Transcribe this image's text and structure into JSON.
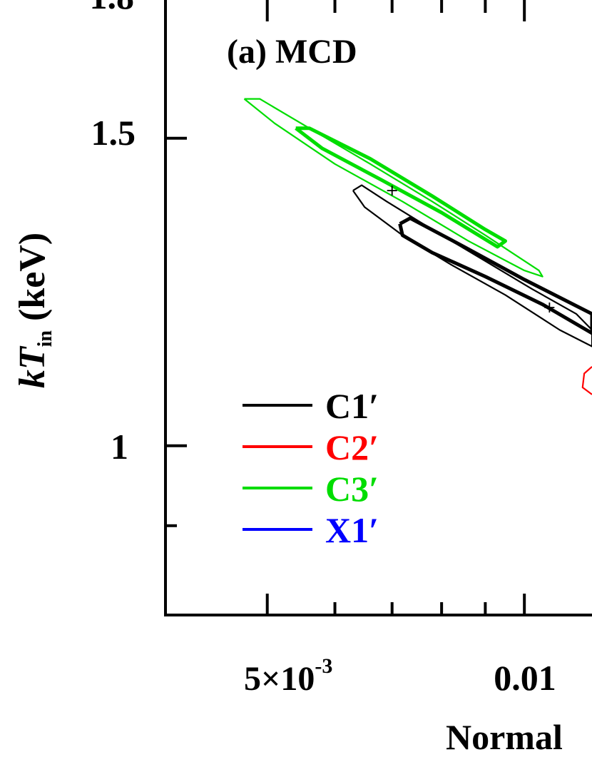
{
  "chart_data": {
    "type": "scatter",
    "panel_label": "(a) MCD",
    "ylabel_main": "kT",
    "ylabel_sub": "in",
    "ylabel_unit": "(keV)",
    "xlabel": "Normal",
    "x_scale": "log",
    "y_scale": "log",
    "xlim": [
      0.0038,
      0.012
    ],
    "ylim": [
      0.8,
      1.8
    ],
    "x_ticks_labeled": [
      {
        "value": 0.005,
        "mantissa": "5×10",
        "exponent": "-3"
      },
      {
        "value": 0.01,
        "label": "0.01"
      }
    ],
    "x_minor_ticks": [
      0.005,
      0.006,
      0.007,
      0.008,
      0.009,
      0.01
    ],
    "y_ticks_labeled": [
      {
        "value": 1.5,
        "label": "1.5"
      },
      {
        "value": 1.0,
        "label": "1"
      }
    ],
    "y_top_partial_label": "1.8",
    "y_minor_ticks": [
      0.9
    ],
    "legend_position": "lower-left",
    "series": [
      {
        "name": "C1′",
        "color": "#000000",
        "best_fit": {
          "x": 0.0107,
          "y": 1.2
        },
        "contours": [
          {
            "level": "outer",
            "points": [
              [
                0.0063,
                1.4
              ],
              [
                0.00645,
                1.41
              ],
              [
                0.0069,
                1.38
              ],
              [
                0.0078,
                1.33
              ],
              [
                0.0089,
                1.28
              ],
              [
                0.0102,
                1.23
              ],
              [
                0.0115,
                1.19
              ],
              [
                0.012,
                1.165
              ],
              [
                0.012,
                1.14
              ],
              [
                0.011,
                1.165
              ],
              [
                0.0095,
                1.22
              ],
              [
                0.0082,
                1.27
              ],
              [
                0.0072,
                1.32
              ],
              [
                0.0065,
                1.37
              ],
              [
                0.0063,
                1.4
              ]
            ]
          },
          {
            "level": "inner",
            "points": [
              [
                0.00715,
                1.34
              ],
              [
                0.00735,
                1.35
              ],
              [
                0.0085,
                1.3
              ],
              [
                0.01,
                1.245
              ],
              [
                0.012,
                1.19
              ],
              [
                0.012,
                1.16
              ],
              [
                0.0105,
                1.205
              ],
              [
                0.009,
                1.25
              ],
              [
                0.0078,
                1.29
              ],
              [
                0.0072,
                1.32
              ],
              [
                0.00715,
                1.34
              ]
            ]
          }
        ]
      },
      {
        "name": "C2′",
        "color": "#ff0000",
        "contours": [
          {
            "level": "outer",
            "points": [
              [
                0.012,
                1.11
              ],
              [
                0.01175,
                1.1
              ],
              [
                0.0117,
                1.08
              ],
              [
                0.012,
                1.07
              ]
            ]
          }
        ]
      },
      {
        "name": "C3′",
        "color": "#00dd00",
        "best_fit": {
          "x": 0.007,
          "y": 1.4
        },
        "contours": [
          {
            "level": "outer",
            "points": [
              [
                0.0047,
                1.58
              ],
              [
                0.0049,
                1.58
              ],
              [
                0.0056,
                1.52
              ],
              [
                0.0066,
                1.45
              ],
              [
                0.0078,
                1.38
              ],
              [
                0.009,
                1.32
              ],
              [
                0.0104,
                1.26
              ],
              [
                0.0105,
                1.25
              ],
              [
                0.01,
                1.26
              ],
              [
                0.0086,
                1.31
              ],
              [
                0.0072,
                1.38
              ],
              [
                0.006,
                1.45
              ],
              [
                0.0051,
                1.53
              ],
              [
                0.0047,
                1.58
              ]
            ]
          },
          {
            "level": "inner",
            "points": [
              [
                0.0054,
                1.52
              ],
              [
                0.0056,
                1.52
              ],
              [
                0.0066,
                1.46
              ],
              [
                0.0078,
                1.39
              ],
              [
                0.009,
                1.33
              ],
              [
                0.0095,
                1.31
              ],
              [
                0.0093,
                1.3
              ],
              [
                0.008,
                1.36
              ],
              [
                0.0068,
                1.42
              ],
              [
                0.0058,
                1.48
              ],
              [
                0.0054,
                1.52
              ]
            ]
          }
        ]
      },
      {
        "name": "X1′",
        "color": "#0000ff",
        "contours": []
      }
    ]
  }
}
